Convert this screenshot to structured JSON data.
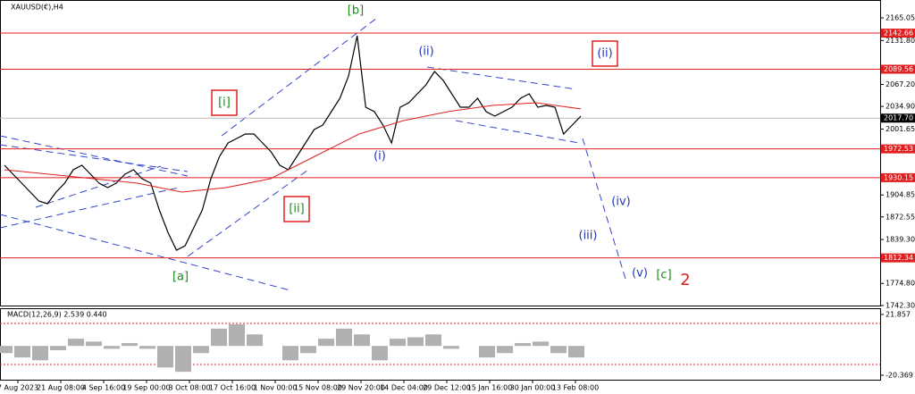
{
  "chart_data": {
    "type": "line",
    "title": "XAUUSD(€),H4",
    "x_labels": [
      "7 Aug 2023",
      "21 Aug 08:00",
      "4 Sep 16:00",
      "19 Sep 00:00",
      "3 Oct 08:00",
      "17 Oct 16:00",
      "1 Nov 00:00",
      "15 Nov 08:00",
      "29 Nov 20:00",
      "14 Dec 04:00",
      "29 Dec 12:00",
      "15 Jan 16:00",
      "30 Jan 00:00",
      "13 Feb 08:00"
    ],
    "series": [
      {
        "color": "#000000",
        "values": [
          1948.4,
          1935.3,
          1922.2,
          1909.0,
          1895.9,
          1892.0,
          1909.0,
          1922.2,
          1941.9,
          1948.4,
          1935.3,
          1922.2,
          1915.6,
          1922.2,
          1935.3,
          1941.9,
          1928.7,
          1922.2,
          1882.8,
          1850.0,
          1823.7,
          1830.3,
          1856.5,
          1882.8,
          1928.7,
          1961.5,
          1981.2,
          1987.8,
          1994.4,
          1994.4,
          1981.2,
          1968.1,
          1948.4,
          1941.9,
          1961.5,
          1981.2,
          2000.9,
          2007.5,
          2027.2,
          2046.9,
          2079.7,
          2138.8,
          2033.8,
          2027.2,
          2007.5,
          1981.2,
          2033.8,
          2040.3,
          2053.5,
          2066.6,
          2086.3,
          2073.1,
          2053.5,
          2033.8,
          2033.8,
          2046.9,
          2027.2,
          2020.6,
          2027.2,
          2033.8,
          2046.9,
          2053.5,
          2033.8,
          2036.4,
          2033.8,
          1994.4,
          2007.5,
          2020.6
        ]
      },
      {
        "color": "#e02020",
        "values": [
          1941.9,
          1935.3,
          1928.7,
          1922.2,
          1909.0,
          1915.6,
          1928.7,
          1961.5,
          1994.4,
          2014.1,
          2027.2,
          2036.4,
          2040.3,
          2031.2
        ]
      }
    ],
    "ylim": [
      1742.3,
      2191.3
    ],
    "yticks": [
      2165.05,
      {
        "value": 2131.8,
        "label": "2131.80"
      },
      {
        "value": 2067.2,
        "label": "2067.20"
      },
      {
        "value": 2034.9,
        "label": "2034.90"
      },
      2001.65,
      1904.85,
      1872.55,
      {
        "value": 1839.3,
        "label": "1839.30"
      },
      {
        "value": 1774.8,
        "label": "1774.80"
      },
      {
        "value": 1742.3,
        "label": "1742.30"
      }
    ],
    "levels": [
      2142.66,
      2089.56,
      1972.53,
      1930.15,
      1812.34
    ],
    "level_color": "#e02020",
    "last_price": {
      "value": 2017.7,
      "label": "2017.70"
    },
    "annotations": [
      {
        "text": "[b]",
        "color": "#1a8a1a",
        "boxed": false
      },
      {
        "text": "(ii)",
        "color": "#2233bb",
        "boxed": false
      },
      {
        "text": "(ii)",
        "color": "#2233bb",
        "boxed": true
      },
      {
        "text": "[i]",
        "color": "#1a8a1a",
        "boxed": true
      },
      {
        "text": "(i)",
        "color": "#2233bb",
        "boxed": false
      },
      {
        "text": "[ii]",
        "color": "#1a8a1a",
        "boxed": true
      },
      {
        "text": "(iv)",
        "color": "#2233bb",
        "boxed": false
      },
      {
        "text": "(iii)",
        "color": "#2233bb",
        "boxed": false
      },
      {
        "text": "[a]",
        "color": "#1a8a1a",
        "boxed": false
      },
      {
        "text": "(v)",
        "color": "#2233bb",
        "boxed": false
      },
      {
        "text": "[c]",
        "color": "#1a8a1a",
        "boxed": false
      },
      {
        "text": "2",
        "color": "#e02020",
        "boxed": false
      }
    ],
    "macd": {
      "label": "MACD(12,26,9) 2.539 0.440",
      "ylim": [
        -23.5,
        26.2
      ],
      "yticks": [
        21.857,
        -20.369
      ],
      "histogram": [
        -5,
        -8,
        -10,
        -3,
        5,
        3,
        -2,
        2,
        -2,
        -15,
        -18,
        -5,
        12,
        15,
        8,
        0,
        -10,
        -5,
        5,
        12,
        8,
        -10,
        5,
        6,
        8,
        -2,
        0,
        -8,
        -5,
        2,
        3,
        -5,
        -8
      ]
    }
  }
}
